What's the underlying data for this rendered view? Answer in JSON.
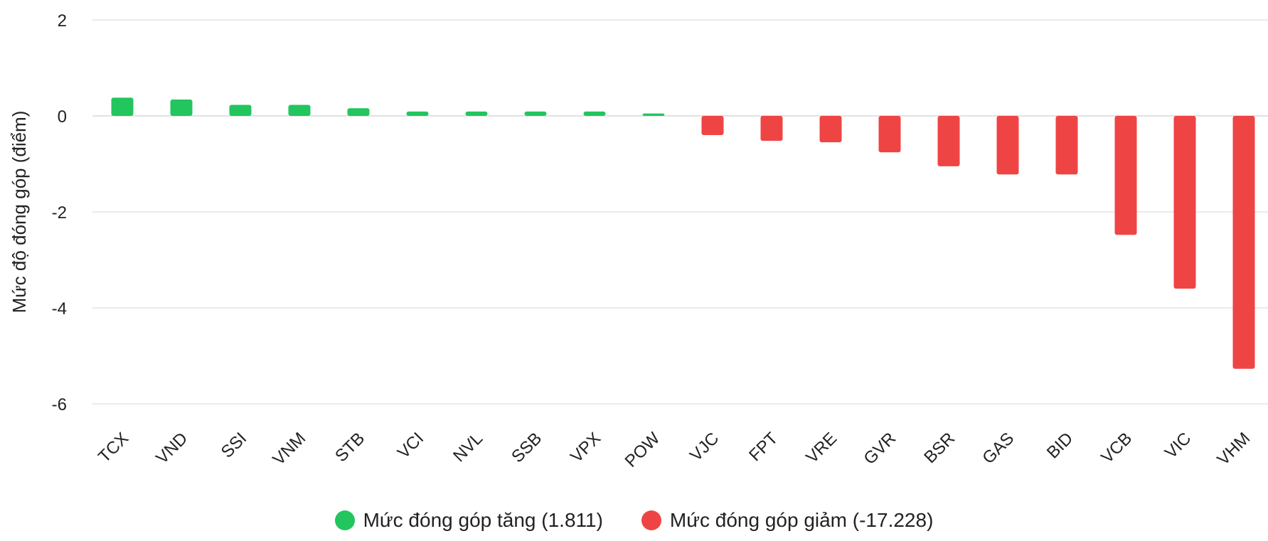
{
  "chart_data": {
    "type": "bar",
    "ylabel": "Mức độ đóng góp (điểm)",
    "ylim": [
      -7,
      2
    ],
    "yticks": [
      2,
      0,
      -2,
      -4,
      -6
    ],
    "grid": true,
    "legend_position": "bottom",
    "categories": [
      "TCX",
      "VND",
      "SSI",
      "VNM",
      "STB",
      "VCI",
      "NVL",
      "SSB",
      "VPX",
      "POW",
      "VJC",
      "FPT",
      "VRE",
      "GVR",
      "BSR",
      "GAS",
      "BID",
      "VCB",
      "VIC",
      "VHM"
    ],
    "values": [
      0.38,
      0.34,
      0.23,
      0.23,
      0.16,
      0.09,
      0.09,
      0.09,
      0.09,
      0.05,
      -0.4,
      -0.52,
      -0.55,
      -0.76,
      -1.05,
      -1.22,
      -1.22,
      -2.48,
      -3.6,
      -5.27
    ],
    "series": [
      {
        "name": "Mức đóng góp tăng (1.811)",
        "color": "#22c55e"
      },
      {
        "name": "Mức đóng góp giảm (-17.228)",
        "color": "#ef4444"
      }
    ]
  }
}
